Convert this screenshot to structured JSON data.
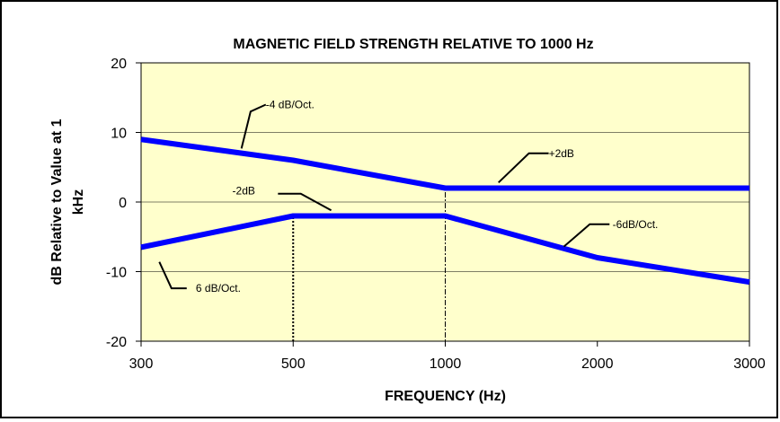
{
  "chart_data": {
    "type": "line",
    "title": "MAGNETIC FIELD STRENGTH RELATIVE TO 1000 Hz",
    "xlabel": "FREQUENCY (Hz)",
    "ylabel": "dB Relative to Value at 1 kHz",
    "ylabel_lines": [
      "dB Relative to Value at 1",
      "kHz"
    ],
    "x_categories": [
      "300",
      "500",
      "1000",
      "2000",
      "3000"
    ],
    "x_positions": [
      0,
      1,
      2,
      3,
      4
    ],
    "ylim": [
      -20,
      20
    ],
    "yticks": [
      20,
      10,
      0,
      -10,
      -20
    ],
    "grid": {
      "horizontal": true,
      "vertical": false
    },
    "plot_background": "#ffffcc",
    "series": [
      {
        "color": "#0000ff",
        "points": [
          [
            0,
            9
          ],
          [
            1,
            6
          ],
          [
            2,
            2
          ],
          [
            3,
            2
          ],
          [
            4,
            2
          ]
        ]
      },
      {
        "color": "#0000ff",
        "points": [
          [
            0,
            -6.5
          ],
          [
            1,
            -2
          ],
          [
            2,
            -2
          ],
          [
            3,
            -8
          ],
          [
            4,
            -11.5
          ]
        ]
      }
    ],
    "annotations": [
      {
        "text": "-4 dB/Oct.",
        "x": 0.82,
        "y": 14.0,
        "leader": [
          [
            0.82,
            14.0
          ],
          [
            0.72,
            13.0
          ],
          [
            0.66,
            7.7
          ]
        ]
      },
      {
        "text": "+2dB",
        "x": 2.68,
        "y": 7.0,
        "leader": [
          [
            2.68,
            7.0
          ],
          [
            2.55,
            7.0
          ],
          [
            2.35,
            2.8
          ]
        ]
      },
      {
        "text": "-2dB",
        "x": 0.6,
        "y": 1.6,
        "leader": [
          [
            0.9,
            1.2
          ],
          [
            1.05,
            1.2
          ],
          [
            1.25,
            -1.2
          ]
        ]
      },
      {
        "text": "-6dB/Oct.",
        "x": 3.1,
        "y": -3.2,
        "leader": [
          [
            3.08,
            -3.2
          ],
          [
            2.95,
            -3.2
          ],
          [
            2.78,
            -6.4
          ]
        ]
      },
      {
        "text": "6 dB/Oct.",
        "x": 0.36,
        "y": -12.4,
        "leader": [
          [
            0.3,
            -12.4
          ],
          [
            0.2,
            -12.4
          ],
          [
            0.12,
            -8.6
          ]
        ]
      }
    ],
    "reference_lines": [
      {
        "x": 1.0,
        "from": -20,
        "to": -2,
        "style": "dashed"
      },
      {
        "x": 2.0,
        "from": -20,
        "to": 2,
        "style": "dashdot"
      }
    ]
  }
}
